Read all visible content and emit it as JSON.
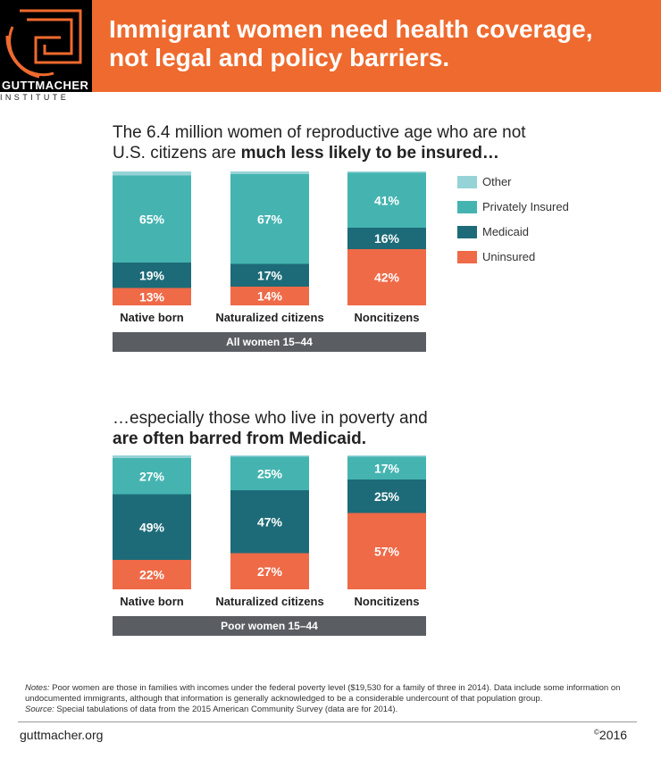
{
  "brand": {
    "name": "GUTTMACHER",
    "sub": "INSTITUTE",
    "headline_line1": "Immigrant women need health coverage,",
    "headline_line2": "not legal and policy barriers.",
    "accent_color": "#ef6a2e"
  },
  "section1": {
    "line1": "The 6.4 million women of reproductive age who are not",
    "line2_plain": "U.S. citizens are ",
    "line2_bold": "much less likely to be insured…"
  },
  "section2": {
    "line1": "…especially those who live in poverty and",
    "line2_bold": "are often barred from Medicaid."
  },
  "legend": {
    "items": [
      {
        "label": "Other",
        "color": "#96d3d6"
      },
      {
        "label": "Privately Insured",
        "color": "#45b4b1"
      },
      {
        "label": "Medicaid",
        "color": "#1d6b78"
      },
      {
        "label": "Uninsured",
        "color": "#ef6a47"
      }
    ]
  },
  "chart_data": [
    {
      "type": "bar",
      "stacked": true,
      "group_label": "All women 15–44",
      "categories": [
        "Native born",
        "Naturalized citizens",
        "Noncitizens"
      ],
      "series": [
        {
          "name": "Uninsured",
          "values": [
            13,
            14,
            42
          ],
          "color": "#ef6a47"
        },
        {
          "name": "Medicaid",
          "values": [
            19,
            17,
            16
          ],
          "color": "#1d6b78"
        },
        {
          "name": "Privately Insured",
          "values": [
            65,
            67,
            41
          ],
          "color": "#45b4b1"
        },
        {
          "name": "Other",
          "values": [
            3,
            2,
            1
          ],
          "color": "#96d3d6"
        }
      ],
      "ylim": [
        0,
        100
      ]
    },
    {
      "type": "bar",
      "stacked": true,
      "group_label": "Poor women 15–44",
      "categories": [
        "Native born",
        "Naturalized citizens",
        "Noncitizens"
      ],
      "series": [
        {
          "name": "Uninsured",
          "values": [
            22,
            27,
            57
          ],
          "color": "#ef6a47"
        },
        {
          "name": "Medicaid",
          "values": [
            49,
            47,
            25
          ],
          "color": "#1d6b78"
        },
        {
          "name": "Privately Insured",
          "values": [
            27,
            25,
            17
          ],
          "color": "#45b4b1"
        },
        {
          "name": "Other",
          "values": [
            2,
            1,
            1
          ],
          "color": "#96d3d6"
        }
      ],
      "ylim": [
        0,
        100
      ]
    }
  ],
  "notes": {
    "notes_label": "Notes:",
    "notes_text": " Poor women are those in families with incomes under the federal poverty level ($19,530 for a family of three in 2014). Data include some information on undocumented immigrants, although that information is generally acknowledged to be a considerable undercount of that population group.",
    "source_label": "Source:",
    "source_text": " Special tabulations of data from the 2015 American Community Survey (data are for 2014)."
  },
  "footer": {
    "url": "guttmacher.org",
    "copyright_symbol": "©",
    "year": "2016"
  }
}
